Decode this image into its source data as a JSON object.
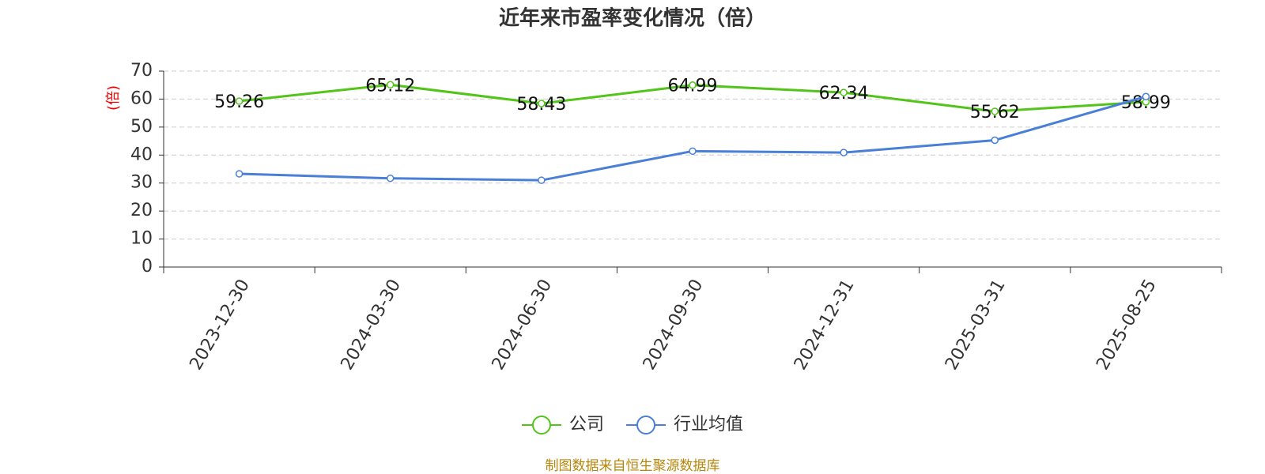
{
  "chart_data": {
    "type": "line",
    "title": "近年来市盈率变化情况（倍）",
    "y_label": "(倍)",
    "categories": [
      "2023-12-30",
      "2024-03-30",
      "2024-06-30",
      "2024-09-30",
      "2024-12-31",
      "2025-03-31",
      "2025-08-25"
    ],
    "series": [
      {
        "name": "公司",
        "color": "#52c41a",
        "values": [
          59.26,
          65.12,
          58.43,
          64.99,
          62.34,
          55.62,
          58.99
        ],
        "data_labels": true
      },
      {
        "name": "行业均值",
        "color": "#4a7fd8",
        "values": [
          33.3,
          31.7,
          31.0,
          41.4,
          40.9,
          45.3,
          60.9
        ],
        "data_labels": false
      }
    ],
    "ylim": [
      0,
      70
    ],
    "yticks": [
      0,
      10,
      20,
      30,
      40,
      50,
      60,
      70
    ],
    "grid": true,
    "legend": "bottom",
    "source": "制图数据来自恒生聚源数据库"
  }
}
